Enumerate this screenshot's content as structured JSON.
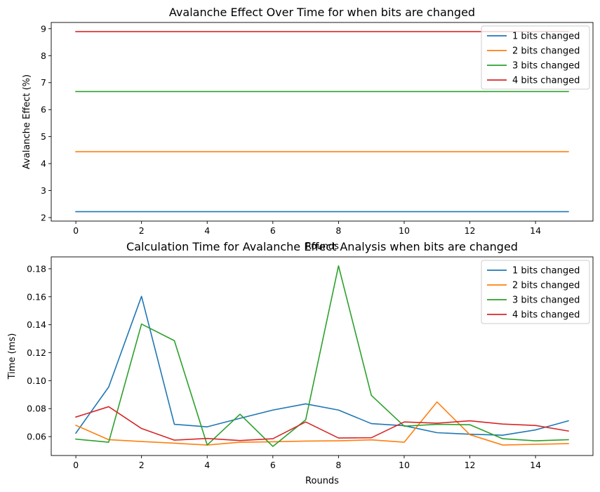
{
  "chart_data": [
    {
      "type": "line",
      "title": "Avalanche Effect Over Time for when bits are changed",
      "xlabel": "Rounds",
      "ylabel": "Avalanche Effect (%)",
      "xlim": [
        -0.75,
        15.75
      ],
      "ylim": [
        1.87,
        9.23
      ],
      "xticks": [
        0,
        2,
        4,
        6,
        8,
        10,
        12,
        14
      ],
      "yticks": [
        2,
        3,
        4,
        5,
        6,
        7,
        8,
        9
      ],
      "ytick_decimals": 0,
      "grid": false,
      "legend_position": "top-right",
      "x": [
        0,
        1,
        2,
        3,
        4,
        5,
        6,
        7,
        8,
        9,
        10,
        11,
        12,
        13,
        14,
        15
      ],
      "series": [
        {
          "name": "1 bits changed",
          "color": "#1f77b4",
          "values": [
            2.22,
            2.22,
            2.22,
            2.22,
            2.22,
            2.22,
            2.22,
            2.22,
            2.22,
            2.22,
            2.22,
            2.22,
            2.22,
            2.22,
            2.22,
            2.22
          ]
        },
        {
          "name": "2 bits changed",
          "color": "#ff7f0e",
          "values": [
            4.44,
            4.44,
            4.44,
            4.44,
            4.44,
            4.44,
            4.44,
            4.44,
            4.44,
            4.44,
            4.44,
            4.44,
            4.44,
            4.44,
            4.44,
            4.44
          ]
        },
        {
          "name": "3 bits changed",
          "color": "#2ca02c",
          "values": [
            6.67,
            6.67,
            6.67,
            6.67,
            6.67,
            6.67,
            6.67,
            6.67,
            6.67,
            6.67,
            6.67,
            6.67,
            6.67,
            6.67,
            6.67,
            6.67
          ]
        },
        {
          "name": "4 bits changed",
          "color": "#d62728",
          "values": [
            8.89,
            8.89,
            8.89,
            8.89,
            8.89,
            8.89,
            8.89,
            8.89,
            8.89,
            8.89,
            8.89,
            8.89,
            8.89,
            8.89,
            8.89,
            8.89
          ]
        }
      ]
    },
    {
      "type": "line",
      "title": "Calculation Time for Avalanche Effect Analysis when bits are changed",
      "xlabel": "Rounds",
      "ylabel": "Time (ms)",
      "xlim": [
        -0.75,
        15.75
      ],
      "ylim": [
        0.0465,
        0.1885
      ],
      "xticks": [
        0,
        2,
        4,
        6,
        8,
        10,
        12,
        14
      ],
      "yticks": [
        0.06,
        0.08,
        0.1,
        0.12,
        0.14,
        0.16,
        0.18
      ],
      "ytick_decimals": 2,
      "grid": false,
      "legend_position": "top-right",
      "x": [
        0,
        1,
        2,
        3,
        4,
        5,
        6,
        7,
        8,
        9,
        10,
        11,
        12,
        13,
        14,
        15
      ],
      "series": [
        {
          "name": "1 bits changed",
          "color": "#1f77b4",
          "values": [
            0.0625,
            0.0955,
            0.1603,
            0.0688,
            0.067,
            0.0731,
            0.079,
            0.0834,
            0.079,
            0.0693,
            0.0678,
            0.0628,
            0.0617,
            0.061,
            0.0648,
            0.0713
          ]
        },
        {
          "name": "2 bits changed",
          "color": "#ff7f0e",
          "values": [
            0.0681,
            0.0578,
            0.0565,
            0.0553,
            0.054,
            0.056,
            0.0563,
            0.0568,
            0.057,
            0.0577,
            0.056,
            0.0848,
            0.0614,
            0.054,
            0.0545,
            0.055
          ]
        },
        {
          "name": "3 bits changed",
          "color": "#2ca02c",
          "values": [
            0.0582,
            0.056,
            0.1405,
            0.1286,
            0.054,
            0.076,
            0.053,
            0.072,
            0.1821,
            0.0895,
            0.0675,
            0.0688,
            0.0685,
            0.0585,
            0.057,
            0.0578
          ]
        },
        {
          "name": "4 bits changed",
          "color": "#d62728",
          "values": [
            0.074,
            0.0814,
            0.0658,
            0.0575,
            0.0587,
            0.0572,
            0.0585,
            0.0705,
            0.059,
            0.0592,
            0.0705,
            0.0696,
            0.0713,
            0.069,
            0.068,
            0.064
          ]
        }
      ]
    }
  ]
}
